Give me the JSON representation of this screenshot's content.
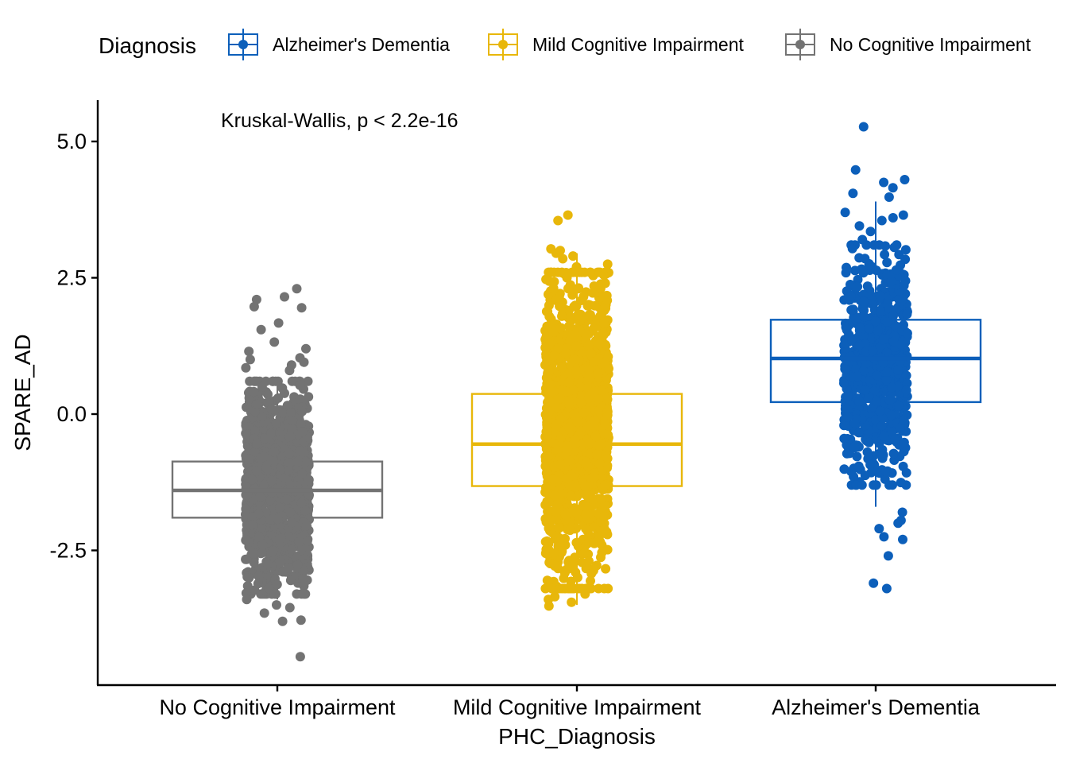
{
  "chart_data": {
    "type": "boxplot",
    "title": "",
    "xlabel": "PHC_Diagnosis",
    "ylabel": "SPARE_AD",
    "ylim": [
      -4.8,
      5.7
    ],
    "yticks": [
      -2.5,
      0.0,
      2.5,
      5.0
    ],
    "ytick_labels": [
      "-2.5",
      "0.0",
      "2.5",
      "5.0"
    ],
    "categories": [
      "No Cognitive Impairment",
      "Mild Cognitive Impairment",
      "Alzheimer's Dementia"
    ],
    "annotation": "Kruskal-Wallis, p < 2.2e-16",
    "legend": {
      "title": "Diagnosis",
      "position": "top",
      "entries": [
        "Alzheimer's Dementia",
        "Mild Cognitive Impairment",
        "No Cognitive Impairment"
      ]
    },
    "colors": {
      "Alzheimer's Dementia": "#0C5FBA",
      "Mild Cognitive Impairment": "#E8B70A",
      "No Cognitive Impairment": "#737373"
    },
    "grid": false,
    "series": [
      {
        "name": "No Cognitive Impairment",
        "box": {
          "q1": -1.9,
          "median": -1.4,
          "q3": -0.87,
          "whisker_low": -3.4,
          "whisker_high": 0.6
        },
        "jitter": {
          "count": 1400,
          "core_low": -2.9,
          "core_high": 0.2
        },
        "outliers": [
          2.3,
          2.15,
          2.1,
          1.97,
          1.95,
          1.67,
          1.55,
          1.32,
          1.2,
          1.15,
          1.03,
          1.0,
          0.95,
          0.9,
          0.85,
          0.8,
          -3.2,
          -3.3,
          -3.4,
          -3.5,
          -3.55,
          -3.65,
          -3.78,
          -3.8,
          -4.45
        ]
      },
      {
        "name": "Mild Cognitive Impairment",
        "box": {
          "q1": -1.32,
          "median": -0.55,
          "q3": 0.37,
          "whisker_low": -3.5,
          "whisker_high": 2.95
        },
        "jitter": {
          "count": 1400,
          "core_low": -2.8,
          "core_high": 2.2
        },
        "outliers": [
          3.65,
          3.55,
          3.03,
          3.0,
          2.95,
          2.9,
          2.85,
          2.75,
          2.7,
          2.6,
          2.55,
          2.5,
          2.4,
          2.3,
          -3.2,
          -3.3,
          -3.35,
          -3.4,
          -3.45,
          -3.52
        ]
      },
      {
        "name": "Alzheimer's Dementia",
        "box": {
          "q1": 0.22,
          "median": 1.02,
          "q3": 1.73,
          "whisker_low": -1.7,
          "whisker_high": 3.9
        },
        "jitter": {
          "count": 700,
          "core_low": -0.9,
          "core_high": 2.7
        },
        "outliers": [
          5.27,
          4.48,
          4.3,
          4.25,
          4.15,
          4.05,
          3.98,
          3.7,
          3.65,
          3.6,
          3.55,
          3.45,
          3.35,
          3.2,
          -1.8,
          -1.95,
          -2.0,
          -2.1,
          -2.25,
          -2.3,
          -2.6,
          -3.1,
          -3.2
        ]
      }
    ]
  }
}
